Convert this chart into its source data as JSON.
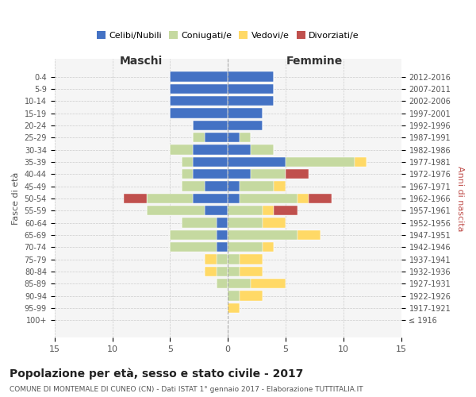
{
  "age_groups": [
    "100+",
    "95-99",
    "90-94",
    "85-89",
    "80-84",
    "75-79",
    "70-74",
    "65-69",
    "60-64",
    "55-59",
    "50-54",
    "45-49",
    "40-44",
    "35-39",
    "30-34",
    "25-29",
    "20-24",
    "15-19",
    "10-14",
    "5-9",
    "0-4"
  ],
  "birth_years": [
    "≤ 1916",
    "1917-1921",
    "1922-1926",
    "1927-1931",
    "1932-1936",
    "1937-1941",
    "1942-1946",
    "1947-1951",
    "1952-1956",
    "1957-1961",
    "1962-1966",
    "1967-1971",
    "1972-1976",
    "1977-1981",
    "1982-1986",
    "1987-1991",
    "1992-1996",
    "1997-2001",
    "2002-2006",
    "2007-2011",
    "2012-2016"
  ],
  "colors": {
    "celibe": "#4472C4",
    "coniugato": "#C5D9A0",
    "vedovo": "#FFD966",
    "divorziato": "#C0504D"
  },
  "males": {
    "celibe": [
      0,
      0,
      0,
      0,
      0,
      0,
      1,
      1,
      1,
      2,
      3,
      2,
      3,
      3,
      3,
      2,
      3,
      5,
      5,
      5,
      5
    ],
    "coniugato": [
      0,
      0,
      0,
      1,
      1,
      1,
      4,
      4,
      3,
      5,
      4,
      2,
      1,
      1,
      2,
      1,
      0,
      0,
      0,
      0,
      0
    ],
    "vedovo": [
      0,
      0,
      0,
      0,
      1,
      1,
      0,
      0,
      0,
      0,
      0,
      0,
      0,
      0,
      0,
      0,
      0,
      0,
      0,
      0,
      0
    ],
    "divorziato": [
      0,
      0,
      0,
      0,
      0,
      0,
      0,
      0,
      0,
      0,
      2,
      0,
      0,
      0,
      0,
      0,
      0,
      0,
      0,
      0,
      0
    ]
  },
  "females": {
    "celibe": [
      0,
      0,
      0,
      0,
      0,
      0,
      0,
      0,
      0,
      0,
      1,
      1,
      2,
      5,
      2,
      1,
      3,
      3,
      4,
      4,
      4
    ],
    "coniugato": [
      0,
      0,
      1,
      2,
      1,
      1,
      3,
      6,
      3,
      3,
      5,
      3,
      3,
      6,
      2,
      1,
      0,
      0,
      0,
      0,
      0
    ],
    "vedovo": [
      0,
      1,
      2,
      3,
      2,
      2,
      1,
      2,
      2,
      1,
      1,
      1,
      0,
      1,
      0,
      0,
      0,
      0,
      0,
      0,
      0
    ],
    "divorziato": [
      0,
      0,
      0,
      0,
      0,
      0,
      0,
      0,
      0,
      2,
      2,
      0,
      2,
      0,
      0,
      0,
      0,
      0,
      0,
      0,
      0
    ]
  },
  "xlim": 15,
  "title": "Popolazione per età, sesso e stato civile - 2017",
  "subtitle": "COMUNE DI MONTEMALE DI CUNEO (CN) - Dati ISTAT 1° gennaio 2017 - Elaborazione TUTTITALIA.IT",
  "xlabel_left": "Maschi",
  "xlabel_right": "Femmine",
  "ylabel_left": "Fasce di età",
  "ylabel_right": "Anni di nascita",
  "legend_labels": [
    "Celibi/Nubili",
    "Coniugati/e",
    "Vedovi/e",
    "Divorziati/e"
  ],
  "bg_color": "#f5f5f5",
  "grid_color": "#cccccc"
}
